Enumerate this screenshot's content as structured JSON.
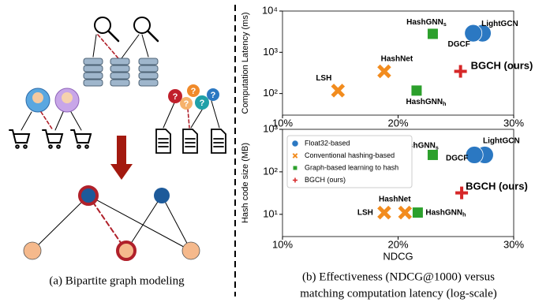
{
  "chart_data": [
    {
      "type": "scatter",
      "ylabel": "Computation Latency (ms)",
      "log_y": true,
      "xlim": [
        10,
        30
      ],
      "xticks": [
        {
          "value": 10,
          "label": "10%"
        },
        {
          "value": 20,
          "label": "20%"
        },
        {
          "value": 30,
          "label": "30%"
        }
      ],
      "ylim": [
        30,
        10000
      ],
      "yticks": [
        {
          "value": 100,
          "label": "10²"
        },
        {
          "value": 1000,
          "label": "10³"
        },
        {
          "value": 10000,
          "label": "10⁴"
        }
      ],
      "grid": false,
      "series": [
        {
          "name": "Float32-based",
          "color": "#2b78c2",
          "marker": "circle",
          "labels": [
            "LightGCN",
            "DGCF"
          ],
          "x": [
            27.3,
            26.5
          ],
          "values": [
            2900,
            2900
          ]
        },
        {
          "name": "Conventional hashing-based",
          "color": "#f28c1e",
          "marker": "x",
          "labels": [
            "LSH",
            "HashNet"
          ],
          "x": [
            14.8,
            18.8
          ],
          "values": [
            118,
            345
          ]
        },
        {
          "name": "Graph-based learning to hash",
          "color": "#2ca02c",
          "marker": "square",
          "labels": [
            "HashGNN",
            "HashGNN"
          ],
          "label_subscripts": [
            "s",
            "h"
          ],
          "x": [
            23.0,
            21.6
          ],
          "values": [
            2800,
            118
          ]
        },
        {
          "name": "BGCH (ours)",
          "color": "#d62728",
          "marker": "plus",
          "labels": [
            "BGCH (ours)"
          ],
          "x": [
            25.4
          ],
          "values": [
            345
          ]
        }
      ]
    },
    {
      "type": "scatter",
      "xlabel": "NDCG",
      "ylabel": "Hash code size (MB)",
      "log_y": true,
      "xlim": [
        10,
        30
      ],
      "xticks": [
        {
          "value": 10,
          "label": "10%"
        },
        {
          "value": 20,
          "label": "20%"
        },
        {
          "value": 30,
          "label": "30%"
        }
      ],
      "ylim": [
        3,
        1000
      ],
      "yticks": [
        {
          "value": 10,
          "label": "10¹"
        },
        {
          "value": 100,
          "label": "10²"
        },
        {
          "value": 1000,
          "label": "10³"
        }
      ],
      "grid": false,
      "legend": "upper left",
      "series": [
        {
          "name": "Float32-based",
          "color": "#2b78c2",
          "marker": "circle",
          "labels": [
            "LightGCN",
            "DGCF"
          ],
          "x": [
            27.5,
            26.6
          ],
          "values": [
            250,
            250
          ]
        },
        {
          "name": "Conventional hashing-based",
          "color": "#f28c1e",
          "marker": "x",
          "labels": [
            "LSH",
            "HashNet"
          ],
          "x": [
            18.8,
            20.6
          ],
          "values": [
            11,
            11
          ]
        },
        {
          "name": "Graph-based learning to hash",
          "color": "#2ca02c",
          "marker": "square",
          "labels": [
            "HashGNN",
            "HashGNN"
          ],
          "label_subscripts": [
            "s",
            "h"
          ],
          "x": [
            23.0,
            21.7
          ],
          "values": [
            250,
            11
          ]
        },
        {
          "name": "BGCH (ours)",
          "color": "#d62728",
          "marker": "plus",
          "labels": [
            "BGCH (ours)"
          ],
          "x": [
            25.5
          ],
          "values": [
            32
          ]
        }
      ]
    }
  ],
  "diagram": {
    "question_mark": "?"
  },
  "captions": {
    "left": "(a) Bipartite graph modeling",
    "right_line1": "(b) Effectiveness (NDCG@1000) versus",
    "right_line2": "matching computation latency (log-scale)"
  }
}
